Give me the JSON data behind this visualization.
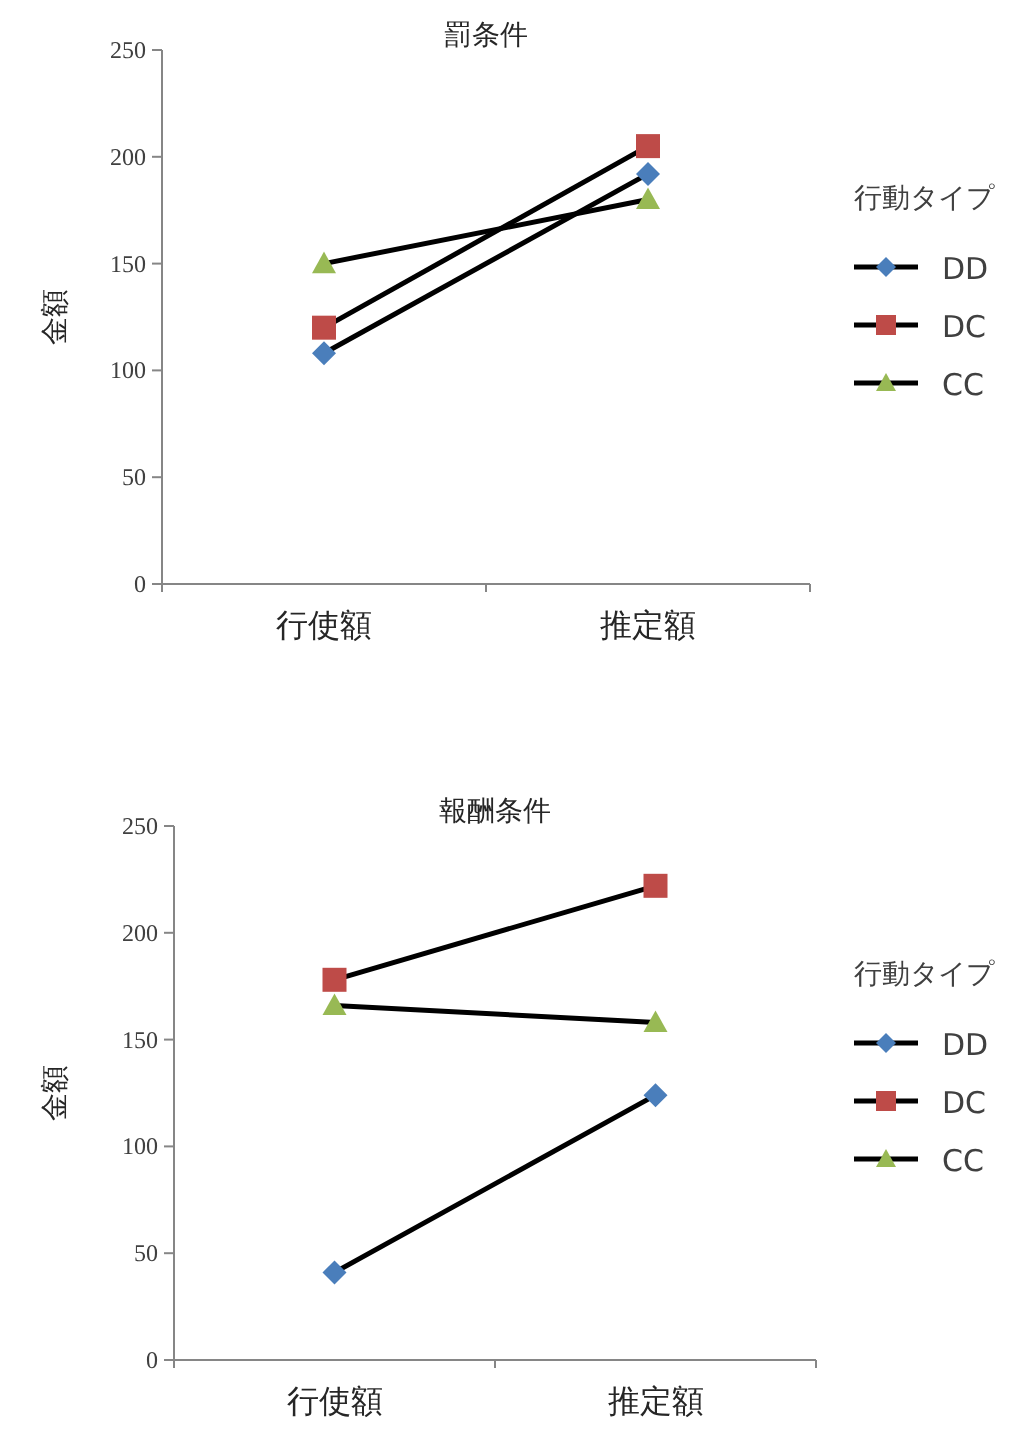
{
  "chart_data": [
    {
      "type": "line",
      "title": "罰条件",
      "ylabel": "金額",
      "legend_title": "行動タイプ",
      "categories": [
        "行使額",
        "推定額"
      ],
      "ylim": [
        0,
        250
      ],
      "yticks": [
        0,
        50,
        100,
        150,
        200,
        250
      ],
      "grid": false,
      "legend": "right",
      "series": [
        {
          "name": "DD",
          "color": "#4a7ebb",
          "marker": "diamond",
          "values": [
            108,
            192
          ]
        },
        {
          "name": "DC",
          "color": "#be4b48",
          "marker": "square",
          "values": [
            120,
            205
          ]
        },
        {
          "name": "CC",
          "color": "#98b954",
          "marker": "triangle",
          "values": [
            150,
            180
          ]
        }
      ]
    },
    {
      "type": "line",
      "title": "報酬条件",
      "ylabel": "金額",
      "legend_title": "行動タイプ",
      "categories": [
        "行使額",
        "推定額"
      ],
      "ylim": [
        0,
        250
      ],
      "yticks": [
        0,
        50,
        100,
        150,
        200,
        250
      ],
      "grid": false,
      "legend": "right",
      "series": [
        {
          "name": "DD",
          "color": "#4a7ebb",
          "marker": "diamond",
          "values": [
            41,
            124
          ]
        },
        {
          "name": "DC",
          "color": "#be4b48",
          "marker": "square",
          "values": [
            178,
            222
          ]
        },
        {
          "name": "CC",
          "color": "#98b954",
          "marker": "triangle",
          "values": [
            166,
            158
          ]
        }
      ]
    }
  ]
}
